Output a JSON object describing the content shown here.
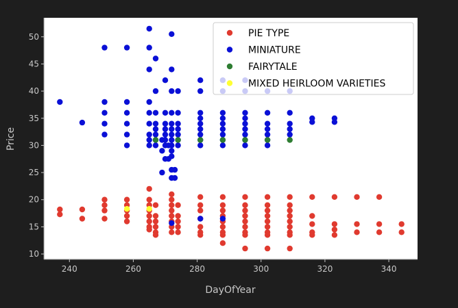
{
  "chart_data": {
    "type": "scatter",
    "xlabel": "DayOfYear",
    "ylabel": "Price",
    "xlim": [
      232,
      349
    ],
    "ylim": [
      9,
      53.5
    ],
    "xticks": [
      240,
      260,
      280,
      300,
      320,
      340
    ],
    "yticks": [
      10,
      15,
      20,
      25,
      30,
      35,
      40,
      45,
      50
    ],
    "grid": false,
    "legend_position": "top-right",
    "series": [
      {
        "name": "PIE TYPE",
        "color": "#e03a2f",
        "points": [
          [
            237,
            18.2
          ],
          [
            237,
            17.3
          ],
          [
            244,
            18.2
          ],
          [
            244,
            16.5
          ],
          [
            251,
            20
          ],
          [
            251,
            19
          ],
          [
            251,
            18
          ],
          [
            251,
            16.5
          ],
          [
            258,
            20
          ],
          [
            258,
            19
          ],
          [
            258,
            18
          ],
          [
            258,
            17
          ],
          [
            258,
            16
          ],
          [
            265,
            22
          ],
          [
            265,
            20
          ],
          [
            265,
            19
          ],
          [
            265,
            18
          ],
          [
            265,
            17
          ],
          [
            265,
            16
          ],
          [
            265,
            15
          ],
          [
            265,
            14.5
          ],
          [
            267,
            19
          ],
          [
            267,
            17
          ],
          [
            267,
            16
          ],
          [
            267,
            15
          ],
          [
            267,
            14
          ],
          [
            267,
            13.5
          ],
          [
            272,
            21
          ],
          [
            272,
            20
          ],
          [
            272,
            19
          ],
          [
            272,
            18
          ],
          [
            272,
            17
          ],
          [
            272,
            16
          ],
          [
            272,
            15
          ],
          [
            272,
            14
          ],
          [
            274,
            19
          ],
          [
            274,
            17
          ],
          [
            274,
            16
          ],
          [
            274,
            15
          ],
          [
            274,
            14
          ],
          [
            281,
            20.5
          ],
          [
            281,
            19
          ],
          [
            281,
            18
          ],
          [
            281,
            16.5
          ],
          [
            281,
            15
          ],
          [
            281,
            14
          ],
          [
            281,
            13.5
          ],
          [
            288,
            20.5
          ],
          [
            288,
            19
          ],
          [
            288,
            18
          ],
          [
            288,
            17
          ],
          [
            288,
            16
          ],
          [
            288,
            15
          ],
          [
            288,
            14
          ],
          [
            288,
            13.5
          ],
          [
            288,
            12
          ],
          [
            295,
            20.5
          ],
          [
            295,
            19
          ],
          [
            295,
            18
          ],
          [
            295,
            17
          ],
          [
            295,
            16
          ],
          [
            295,
            15
          ],
          [
            295,
            14
          ],
          [
            295,
            13.5
          ],
          [
            295,
            11
          ],
          [
            302,
            20.5
          ],
          [
            302,
            19
          ],
          [
            302,
            18
          ],
          [
            302,
            17
          ],
          [
            302,
            16
          ],
          [
            302,
            15
          ],
          [
            302,
            14
          ],
          [
            302,
            13.5
          ],
          [
            302,
            11
          ],
          [
            309,
            20.5
          ],
          [
            309,
            19
          ],
          [
            309,
            18
          ],
          [
            309,
            17
          ],
          [
            309,
            16
          ],
          [
            309,
            15
          ],
          [
            309,
            14
          ],
          [
            309,
            13.5
          ],
          [
            309,
            11
          ],
          [
            316,
            20.5
          ],
          [
            316,
            17
          ],
          [
            316,
            15.5
          ],
          [
            316,
            14
          ],
          [
            316,
            13.5
          ],
          [
            323,
            20.5
          ],
          [
            323,
            15.5
          ],
          [
            323,
            14.5
          ],
          [
            323,
            13.5
          ],
          [
            330,
            20.5
          ],
          [
            330,
            15.5
          ],
          [
            330,
            14
          ],
          [
            337,
            20.5
          ],
          [
            337,
            15.5
          ],
          [
            337,
            14
          ],
          [
            344,
            15.5
          ],
          [
            344,
            14
          ]
        ]
      },
      {
        "name": "MINIATURE",
        "color": "#0a10d6",
        "points": [
          [
            237,
            38
          ],
          [
            244,
            34.2
          ],
          [
            251,
            48
          ],
          [
            251,
            38
          ],
          [
            251,
            36
          ],
          [
            251,
            34
          ],
          [
            251,
            32
          ],
          [
            258,
            48
          ],
          [
            258,
            38
          ],
          [
            258,
            36
          ],
          [
            258,
            34
          ],
          [
            258,
            32
          ],
          [
            258,
            30
          ],
          [
            265,
            51.5
          ],
          [
            265,
            48
          ],
          [
            265,
            44
          ],
          [
            265,
            38
          ],
          [
            265,
            36
          ],
          [
            265,
            34
          ],
          [
            265,
            32
          ],
          [
            265,
            31
          ],
          [
            265,
            30
          ],
          [
            267,
            46
          ],
          [
            267,
            40
          ],
          [
            267,
            36
          ],
          [
            267,
            34
          ],
          [
            267,
            33
          ],
          [
            267,
            32
          ],
          [
            267,
            31
          ],
          [
            267,
            30
          ],
          [
            269,
            31
          ],
          [
            269,
            29
          ],
          [
            269,
            25
          ],
          [
            270,
            42
          ],
          [
            270,
            36
          ],
          [
            270,
            34
          ],
          [
            270,
            33
          ],
          [
            270,
            32
          ],
          [
            270,
            31
          ],
          [
            270,
            30
          ],
          [
            270,
            27.5
          ],
          [
            271,
            30
          ],
          [
            271,
            27.5
          ],
          [
            272,
            50.5
          ],
          [
            272,
            44
          ],
          [
            272,
            40
          ],
          [
            272,
            36
          ],
          [
            272,
            34
          ],
          [
            272,
            33
          ],
          [
            272,
            32
          ],
          [
            272,
            31
          ],
          [
            272,
            30
          ],
          [
            272,
            29
          ],
          [
            272,
            28
          ],
          [
            272,
            25.5
          ],
          [
            272,
            24
          ],
          [
            273,
            25.5
          ],
          [
            273,
            24
          ],
          [
            274,
            40
          ],
          [
            274,
            36
          ],
          [
            274,
            34
          ],
          [
            274,
            33
          ],
          [
            274,
            32
          ],
          [
            274,
            31
          ],
          [
            274,
            30
          ],
          [
            272,
            15.7
          ],
          [
            281,
            42
          ],
          [
            281,
            40
          ],
          [
            281,
            36
          ],
          [
            281,
            35
          ],
          [
            281,
            34
          ],
          [
            281,
            33
          ],
          [
            281,
            32
          ],
          [
            281,
            31
          ],
          [
            281,
            30
          ],
          [
            281,
            16.5
          ],
          [
            288,
            42
          ],
          [
            288,
            40
          ],
          [
            288,
            36
          ],
          [
            288,
            35
          ],
          [
            288,
            34
          ],
          [
            288,
            33
          ],
          [
            288,
            32
          ],
          [
            288,
            31
          ],
          [
            288,
            30
          ],
          [
            288,
            16.5
          ],
          [
            295,
            42
          ],
          [
            295,
            40
          ],
          [
            295,
            36
          ],
          [
            295,
            35
          ],
          [
            295,
            34
          ],
          [
            295,
            33
          ],
          [
            295,
            32
          ],
          [
            295,
            31
          ],
          [
            295,
            30
          ],
          [
            302,
            40
          ],
          [
            302,
            36
          ],
          [
            302,
            34
          ],
          [
            302,
            33
          ],
          [
            302,
            32
          ],
          [
            302,
            31
          ],
          [
            302,
            30
          ],
          [
            309,
            40
          ],
          [
            309,
            36
          ],
          [
            309,
            34
          ],
          [
            309,
            33
          ],
          [
            309,
            32
          ],
          [
            316,
            35
          ],
          [
            316,
            34.3
          ],
          [
            323,
            35
          ],
          [
            323,
            34.3
          ]
        ]
      },
      {
        "name": "FAIRYTALE",
        "color": "#2e7d32",
        "points": [
          [
            267,
            31
          ],
          [
            274,
            31
          ],
          [
            281,
            31
          ],
          [
            288,
            31
          ],
          [
            295,
            31
          ],
          [
            302,
            31
          ],
          [
            309,
            31
          ]
        ]
      },
      {
        "name": "MIXED HEIRLOOM VARIETIES",
        "color": "#ffff33",
        "points": [
          [
            258,
            18.3
          ],
          [
            265,
            18.3
          ]
        ]
      }
    ]
  }
}
